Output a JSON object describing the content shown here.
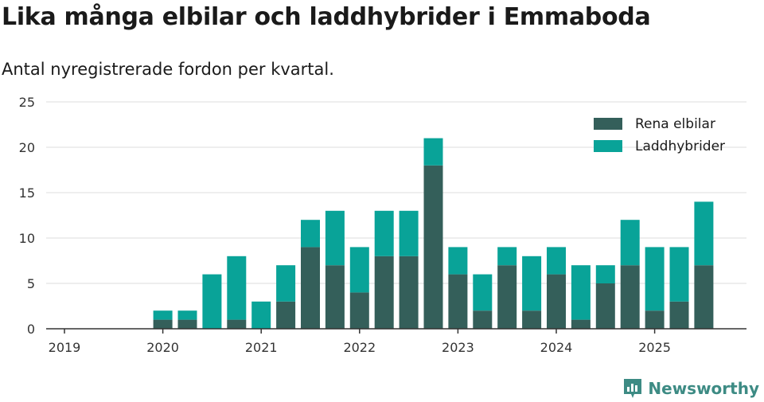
{
  "title": "Lika många elbilar och laddhybrider i Emmaboda",
  "subtitle": "Antal nyregistrerade fordon per kvartal.",
  "brand": "Newsworthy",
  "colors": {
    "elbilar": "#345f5a",
    "laddhybrider": "#09a398",
    "grid": "#dddddd",
    "axis": "#333333",
    "brand": "#3d8b84"
  },
  "chart_data": {
    "type": "bar",
    "stacked": true,
    "title": "Lika många elbilar och laddhybrider i Emmaboda",
    "subtitle": "Antal nyregistrerade fordon per kvartal.",
    "xlabel": "",
    "ylabel": "",
    "ylim": [
      0,
      25
    ],
    "yticks": [
      0,
      5,
      10,
      15,
      20,
      25
    ],
    "xticks": [
      "2019",
      "2020",
      "2021",
      "2022",
      "2023",
      "2024",
      "2025"
    ],
    "legend_position": "top-right",
    "categories": [
      "2019-Q1",
      "2019-Q2",
      "2019-Q3",
      "2019-Q4",
      "2020-Q1",
      "2020-Q2",
      "2020-Q3",
      "2020-Q4",
      "2021-Q1",
      "2021-Q2",
      "2021-Q3",
      "2021-Q4",
      "2022-Q1",
      "2022-Q2",
      "2022-Q3",
      "2022-Q4",
      "2023-Q1",
      "2023-Q2",
      "2023-Q3",
      "2023-Q4",
      "2024-Q1",
      "2024-Q2",
      "2024-Q3",
      "2024-Q4",
      "2025-Q1",
      "2025-Q2",
      "2025-Q3"
    ],
    "series": [
      {
        "name": "Rena elbilar",
        "color": "#345f5a",
        "values": [
          0,
          0,
          0,
          0,
          1,
          1,
          0,
          1,
          0,
          3,
          9,
          7,
          4,
          8,
          8,
          18,
          6,
          2,
          7,
          2,
          6,
          1,
          5,
          7,
          2,
          3,
          7
        ]
      },
      {
        "name": "Laddhybrider",
        "color": "#09a398",
        "values": [
          0,
          0,
          0,
          0,
          1,
          1,
          6,
          7,
          3,
          4,
          3,
          6,
          5,
          5,
          5,
          3,
          3,
          4,
          2,
          6,
          3,
          6,
          2,
          5,
          7,
          6,
          7
        ]
      }
    ]
  }
}
